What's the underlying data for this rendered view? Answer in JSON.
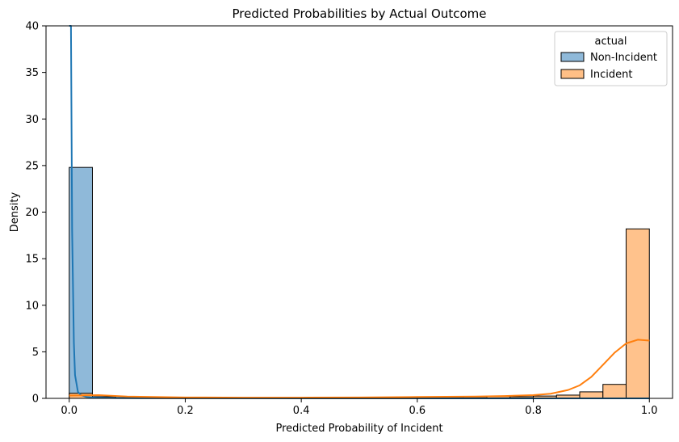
{
  "chart_data": {
    "type": "histogram",
    "title": "Predicted Probabilities by Actual Outcome",
    "xlabel": "Predicted Probability of Incident",
    "ylabel": "Density",
    "xlim": [
      -0.04,
      1.04
    ],
    "ylim": [
      0,
      40
    ],
    "xticks": [
      0.0,
      0.2,
      0.4,
      0.6,
      0.8,
      1.0
    ],
    "xtick_labels": [
      "0.0",
      "0.2",
      "0.4",
      "0.6",
      "0.8",
      "1.0"
    ],
    "yticks": [
      0,
      5,
      10,
      15,
      20,
      25,
      30,
      35,
      40
    ],
    "ytick_labels": [
      "0",
      "5",
      "10",
      "15",
      "20",
      "25",
      "30",
      "35",
      "40"
    ],
    "grid": false,
    "legend": {
      "title": "actual",
      "placement": "top-right",
      "entries": [
        "Non-Incident",
        "Incident"
      ]
    },
    "bin_edges": [
      0.0,
      0.04,
      0.08,
      0.12,
      0.16,
      0.2,
      0.24,
      0.28,
      0.32,
      0.36,
      0.4,
      0.44,
      0.48,
      0.52,
      0.56,
      0.6,
      0.64,
      0.68,
      0.72,
      0.76,
      0.8,
      0.84,
      0.88,
      0.92,
      0.96,
      1.0
    ],
    "series": [
      {
        "name": "Non-Incident",
        "color": "#1f77b4",
        "fill_color": "#8fb9d9",
        "density": [
          24.8,
          0.15,
          0.05,
          0.03,
          0.02,
          0.02,
          0.01,
          0.01,
          0.01,
          0.01,
          0.01,
          0.01,
          0.01,
          0.01,
          0.01,
          0.01,
          0.01,
          0.01,
          0.01,
          0.01,
          0.01,
          0.01,
          0.01,
          0.01,
          0.01
        ],
        "kde": {
          "x": [
            0.0,
            0.003,
            0.005,
            0.008,
            0.01,
            0.015,
            0.02,
            0.03,
            0.05,
            0.08,
            0.12,
            0.2,
            0.4,
            0.6,
            0.8,
            1.0
          ],
          "y": [
            40,
            40,
            18,
            6,
            2.5,
            0.7,
            0.35,
            0.15,
            0.06,
            0.03,
            0.02,
            0.01,
            0.005,
            0.005,
            0.005,
            0.005
          ]
        }
      },
      {
        "name": "Incident",
        "color": "#ff7f0e",
        "fill_color": "#ffbf86",
        "density": [
          0.55,
          0.18,
          0.1,
          0.07,
          0.06,
          0.05,
          0.05,
          0.05,
          0.05,
          0.05,
          0.05,
          0.05,
          0.05,
          0.05,
          0.06,
          0.07,
          0.08,
          0.15,
          0.2,
          0.18,
          0.25,
          0.35,
          0.7,
          1.5,
          18.2
        ],
        "kde": {
          "x": [
            0.0,
            0.05,
            0.1,
            0.2,
            0.3,
            0.4,
            0.5,
            0.6,
            0.7,
            0.75,
            0.8,
            0.83,
            0.86,
            0.88,
            0.9,
            0.92,
            0.94,
            0.96,
            0.98,
            1.0
          ],
          "y": [
            0.3,
            0.35,
            0.2,
            0.1,
            0.08,
            0.08,
            0.1,
            0.15,
            0.2,
            0.25,
            0.35,
            0.5,
            0.9,
            1.4,
            2.3,
            3.6,
            4.9,
            5.9,
            6.3,
            6.2
          ]
        }
      }
    ]
  }
}
